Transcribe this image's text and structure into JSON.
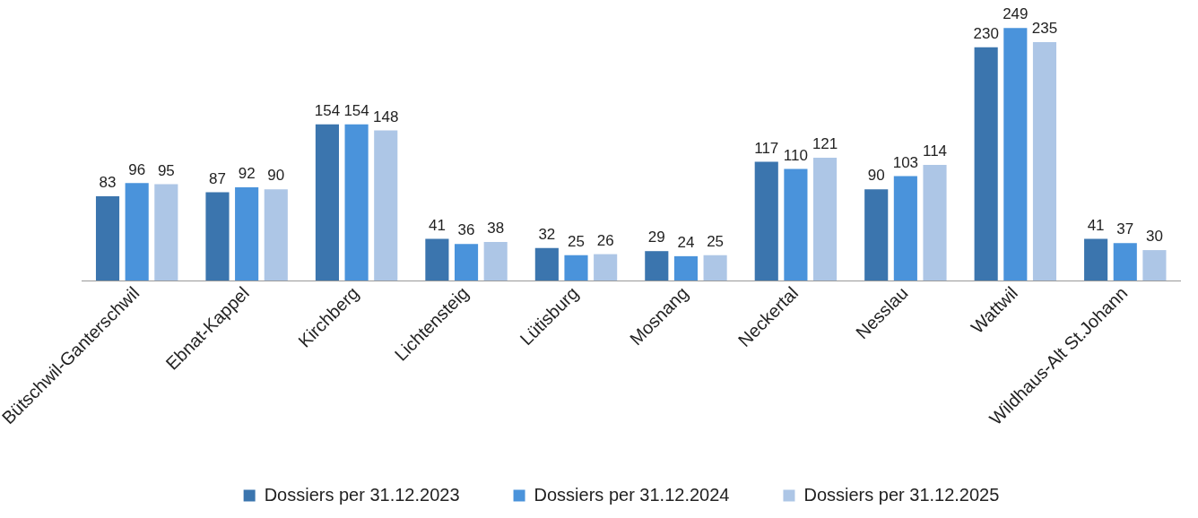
{
  "chart_data": {
    "type": "bar",
    "categories": [
      "Bütschwil-Ganterschwil",
      "Ebnat-Kappel",
      "Kirchberg",
      "Lichtensteig",
      "Lütisburg",
      "Mosnang",
      "Neckertal",
      "Nesslau",
      "Wattwil",
      "Wildhaus-Alt St.Johann"
    ],
    "series": [
      {
        "name": "Dossiers per 31.12.2023",
        "color": "#3b75ae",
        "values": [
          83,
          87,
          154,
          41,
          32,
          29,
          117,
          90,
          230,
          41
        ]
      },
      {
        "name": "Dossiers per 31.12.2024",
        "color": "#4a93db",
        "values": [
          96,
          92,
          154,
          36,
          25,
          24,
          110,
          103,
          249,
          37
        ]
      },
      {
        "name": "Dossiers per 31.12.2025",
        "color": "#adc6e6",
        "values": [
          95,
          90,
          148,
          38,
          26,
          25,
          121,
          114,
          235,
          30
        ]
      }
    ],
    "data_labels": true,
    "grid": false,
    "legend": "bottom"
  }
}
